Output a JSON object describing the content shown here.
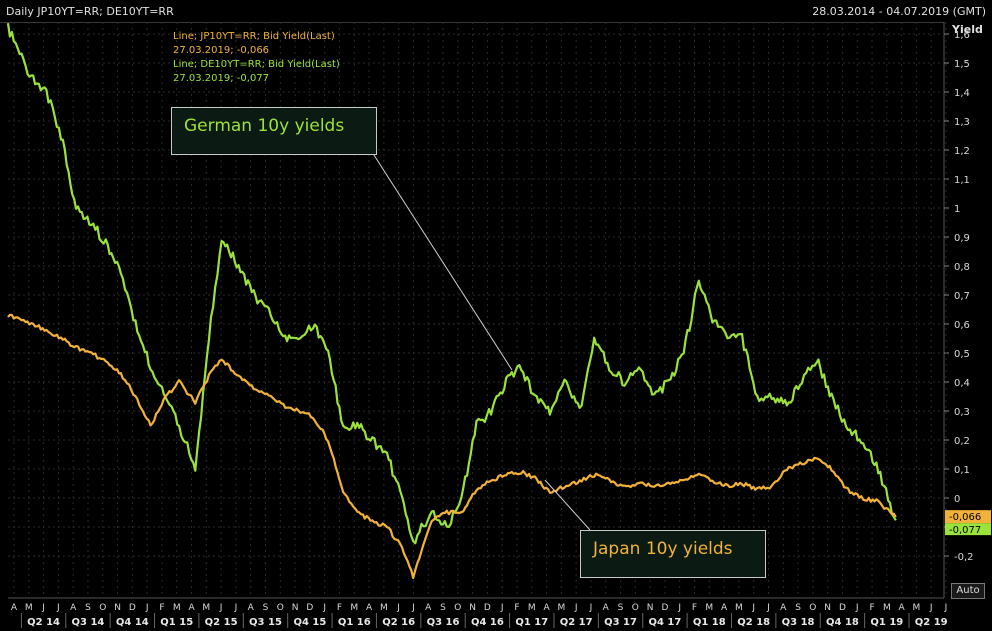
{
  "header": {
    "title": "Daily JP10YT=RR; DE10YT=RR",
    "date_range": "28.03.2014 - 04.07.2019 (GMT)"
  },
  "legend": {
    "jp_line1": "Line; JP10YT=RR; Bid Yield(Last)",
    "jp_line2": "27.03.2019; -0,066",
    "de_line1": "Line; DE10YT=RR; Bid Yield(Last)",
    "de_line2": "27.03.2019; -0,077"
  },
  "annotations": {
    "german": "German 10y yields",
    "japan": "Japan 10y yields"
  },
  "auto_label": "Auto",
  "colors": {
    "german": "#9be33a",
    "japan": "#f2b23a",
    "background": "#000000",
    "grid": "#2a2a2a"
  },
  "chart_data": {
    "type": "line",
    "title": "Daily JP10YT=RR; DE10YT=RR",
    "xlabel": "",
    "ylabel": "Yield",
    "ylim": [
      -0.3,
      1.7
    ],
    "yticks": [
      1.6,
      1.5,
      1.4,
      1.3,
      1.2,
      1.1,
      1.0,
      0.9,
      0.8,
      0.7,
      0.6,
      0.5,
      0.4,
      0.3,
      0.2,
      0.1,
      0,
      -0.1,
      -0.2
    ],
    "ytick_labels": [
      "1,6",
      "1,5",
      "1,4",
      "1,3",
      "1,2",
      "1,1",
      "1",
      "0,9",
      "0,8",
      "0,7",
      "0,6",
      "0,5",
      "0,4",
      "0,3",
      "0,2",
      "0,1",
      "0",
      "-0,1",
      "-0,2"
    ],
    "month_labels": [
      "A",
      "M",
      "J",
      "J",
      "A",
      "S",
      "O",
      "N",
      "D",
      "J",
      "F",
      "M",
      "A",
      "M",
      "J",
      "J",
      "A",
      "S",
      "O",
      "N",
      "D",
      "J",
      "F",
      "M",
      "A",
      "M",
      "J",
      "J",
      "A",
      "S",
      "O",
      "N",
      "D",
      "J",
      "F",
      "M",
      "A",
      "M",
      "J",
      "J",
      "A",
      "S",
      "O",
      "N",
      "D",
      "J",
      "F",
      "M",
      "A",
      "M",
      "J",
      "J",
      "A",
      "S",
      "O",
      "N",
      "D",
      "J",
      "F",
      "M",
      "A",
      "M",
      "J",
      "J"
    ],
    "quarter_labels": [
      "Q2 14",
      "Q3 14",
      "Q4 14",
      "Q1 15",
      "Q2 15",
      "Q3 15",
      "Q4 15",
      "Q1 16",
      "Q2 16",
      "Q3 16",
      "Q4 16",
      "Q1 17",
      "Q2 17",
      "Q3 17",
      "Q4 17",
      "Q1 18",
      "Q2 18",
      "Q3 18",
      "Q4 18",
      "Q1 19",
      "Q2 19"
    ],
    "last_values": {
      "japan": "-0,066",
      "german": "-0,077"
    },
    "series": [
      {
        "name": "DE10YT=RR",
        "x": [
          "2014-03-28",
          "2014-05",
          "2014-06",
          "2014-07",
          "2014-08",
          "2014-09",
          "2014-10",
          "2014-11",
          "2014-12",
          "2015-01",
          "2015-02",
          "2015-03",
          "2015-04-17",
          "2015-05",
          "2015-06-10",
          "2015-07",
          "2015-08",
          "2015-09",
          "2015-10",
          "2015-11",
          "2015-12",
          "2016-01",
          "2016-02",
          "2016-03",
          "2016-04",
          "2016-05",
          "2016-06",
          "2016-07-08",
          "2016-08",
          "2016-09",
          "2016-10",
          "2016-11",
          "2016-12",
          "2017-01",
          "2017-02",
          "2017-03",
          "2017-04",
          "2017-05",
          "2017-06",
          "2017-07",
          "2017-08",
          "2017-09",
          "2017-10",
          "2017-11",
          "2017-12",
          "2018-01",
          "2018-02-15",
          "2018-03",
          "2018-04",
          "2018-05",
          "2018-06",
          "2018-07",
          "2018-08",
          "2018-09",
          "2018-10",
          "2018-11",
          "2018-12",
          "2019-01",
          "2019-02",
          "2019-03-27"
        ],
        "values": [
          1.62,
          1.45,
          1.4,
          1.25,
          1.0,
          0.95,
          0.88,
          0.78,
          0.6,
          0.45,
          0.35,
          0.25,
          0.1,
          0.55,
          0.9,
          0.8,
          0.7,
          0.65,
          0.55,
          0.55,
          0.6,
          0.5,
          0.25,
          0.25,
          0.2,
          0.15,
          0.0,
          -0.15,
          -0.05,
          -0.1,
          0.0,
          0.25,
          0.3,
          0.4,
          0.45,
          0.35,
          0.3,
          0.4,
          0.3,
          0.55,
          0.45,
          0.4,
          0.45,
          0.35,
          0.4,
          0.5,
          0.75,
          0.62,
          0.55,
          0.55,
          0.35,
          0.35,
          0.32,
          0.4,
          0.48,
          0.35,
          0.25,
          0.2,
          0.12,
          -0.077
        ]
      },
      {
        "name": "JP10YT=RR",
        "x": [
          "2014-03-28",
          "2014-05",
          "2014-06",
          "2014-07",
          "2014-08",
          "2014-09",
          "2014-10",
          "2014-11",
          "2014-12",
          "2015-01",
          "2015-02",
          "2015-03",
          "2015-04-17",
          "2015-05",
          "2015-06-10",
          "2015-07",
          "2015-08",
          "2015-09",
          "2015-10",
          "2015-11",
          "2015-12",
          "2016-01",
          "2016-02",
          "2016-03",
          "2016-04",
          "2016-05",
          "2016-06",
          "2016-07-08",
          "2016-08",
          "2016-09",
          "2016-10",
          "2016-11",
          "2016-12",
          "2017-01",
          "2017-02",
          "2017-03",
          "2017-04",
          "2017-05",
          "2017-06",
          "2017-07",
          "2017-08",
          "2017-09",
          "2017-10",
          "2017-11",
          "2017-12",
          "2018-01",
          "2018-02-15",
          "2018-03",
          "2018-04",
          "2018-05",
          "2018-06",
          "2018-07",
          "2018-08",
          "2018-09",
          "2018-10",
          "2018-11",
          "2018-12",
          "2019-01",
          "2019-02",
          "2019-03-27"
        ],
        "values": [
          0.63,
          0.6,
          0.58,
          0.55,
          0.52,
          0.5,
          0.47,
          0.43,
          0.35,
          0.25,
          0.35,
          0.4,
          0.33,
          0.42,
          0.48,
          0.42,
          0.38,
          0.35,
          0.32,
          0.3,
          0.28,
          0.2,
          0.02,
          -0.05,
          -0.08,
          -0.1,
          -0.17,
          -0.27,
          -0.08,
          -0.05,
          -0.05,
          0.03,
          0.06,
          0.08,
          0.09,
          0.07,
          0.02,
          0.04,
          0.06,
          0.08,
          0.06,
          0.04,
          0.05,
          0.04,
          0.05,
          0.06,
          0.08,
          0.06,
          0.04,
          0.05,
          0.03,
          0.04,
          0.1,
          0.12,
          0.14,
          0.1,
          0.03,
          0.0,
          -0.01,
          -0.066
        ]
      }
    ]
  }
}
